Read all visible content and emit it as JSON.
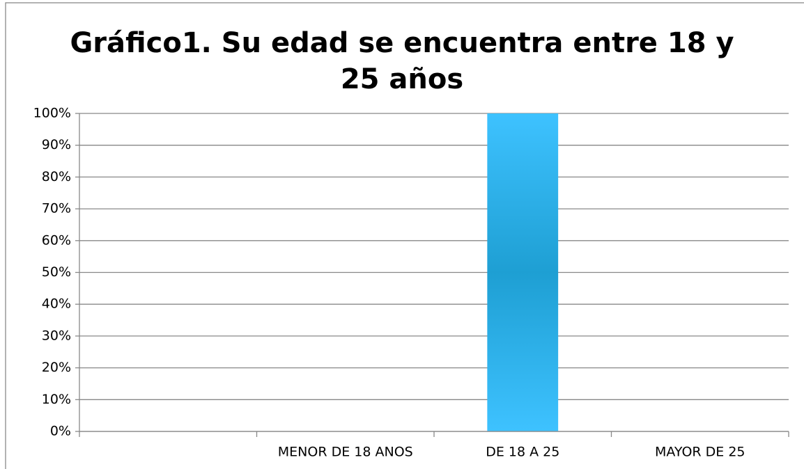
{
  "chart_data": {
    "type": "bar",
    "title": "Gráfico1. Su edad se encuentra entre 18 y 25 años",
    "categories": [
      null,
      "MENOR DE 18 ANOS",
      "DE 18 A 25",
      "MAYOR DE 25"
    ],
    "values": [
      0,
      0,
      100,
      0
    ],
    "color": "#1e9fd3",
    "ylim": [
      0,
      100
    ],
    "yticks": [
      {
        "value": 0,
        "label": "0%"
      },
      {
        "value": 10,
        "label": "10%"
      },
      {
        "value": 20,
        "label": "20%"
      },
      {
        "value": 30,
        "label": "30%"
      },
      {
        "value": 40,
        "label": "40%"
      },
      {
        "value": 50,
        "label": "50%"
      },
      {
        "value": 60,
        "label": "60%"
      },
      {
        "value": 70,
        "label": "70%"
      },
      {
        "value": 80,
        "label": "80%"
      },
      {
        "value": 90,
        "label": "90%"
      },
      {
        "value": 100,
        "label": "100%"
      }
    ],
    "grid": true
  }
}
